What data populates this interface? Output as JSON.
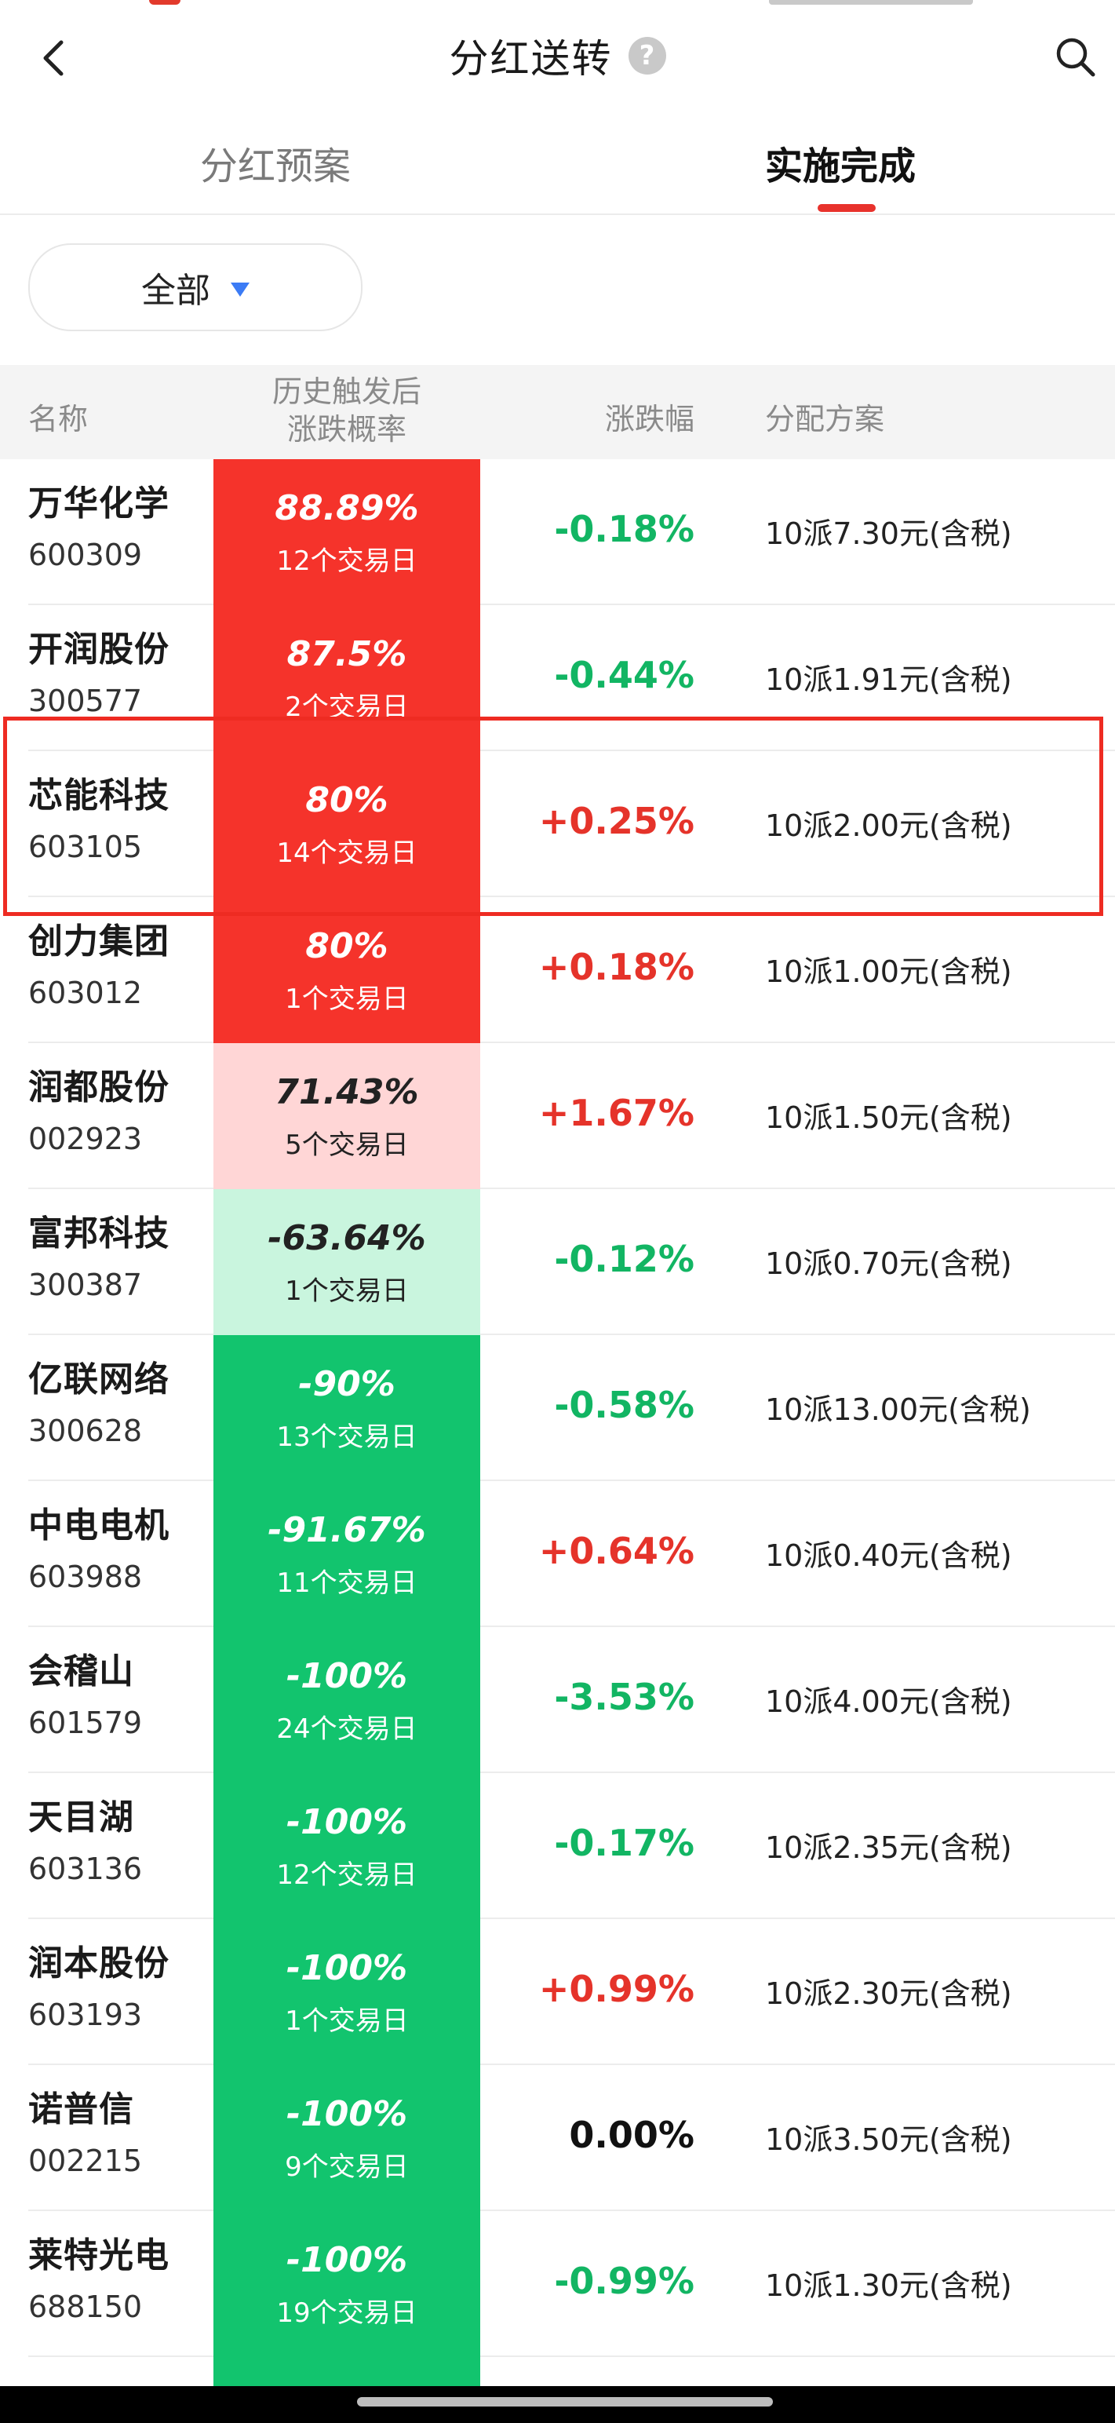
{
  "nav": {
    "title": "分红送转"
  },
  "tabs": [
    {
      "label": "分红预案",
      "active": false
    },
    {
      "label": "实施完成",
      "active": true
    }
  ],
  "filter": {
    "selected": "全部"
  },
  "table": {
    "headers": {
      "name": "名称",
      "prob_line1": "历史触发后",
      "prob_line2": "涨跌概率",
      "change": "涨跌幅",
      "plan": "分配方案"
    },
    "rows": [
      {
        "name": "万华化学",
        "code": "600309",
        "prob": "88.89%",
        "days": "12个交易日",
        "change": "-0.18%",
        "plan": "10派7.30元(含税)"
      },
      {
        "name": "开润股份",
        "code": "300577",
        "prob": "87.5%",
        "days": "2个交易日",
        "change": "-0.44%",
        "plan": "10派1.91元(含税)"
      },
      {
        "name": "芯能科技",
        "code": "603105",
        "prob": "80%",
        "days": "14个交易日",
        "change": "+0.25%",
        "plan": "10派2.00元(含税)"
      },
      {
        "name": "创力集团",
        "code": "603012",
        "prob": "80%",
        "days": "1个交易日",
        "change": "+0.18%",
        "plan": "10派1.00元(含税)"
      },
      {
        "name": "润都股份",
        "code": "002923",
        "prob": "71.43%",
        "days": "5个交易日",
        "change": "+1.67%",
        "plan": "10派1.50元(含税)"
      },
      {
        "name": "富邦科技",
        "code": "300387",
        "prob": "-63.64%",
        "days": "1个交易日",
        "change": "-0.12%",
        "plan": "10派0.70元(含税)"
      },
      {
        "name": "亿联网络",
        "code": "300628",
        "prob": "-90%",
        "days": "13个交易日",
        "change": "-0.58%",
        "plan": "10派13.00元(含税)"
      },
      {
        "name": "中电电机",
        "code": "603988",
        "prob": "-91.67%",
        "days": "11个交易日",
        "change": "+0.64%",
        "plan": "10派0.40元(含税)"
      },
      {
        "name": "会稽山",
        "code": "601579",
        "prob": "-100%",
        "days": "24个交易日",
        "change": "-3.53%",
        "plan": "10派4.00元(含税)"
      },
      {
        "name": "天目湖",
        "code": "603136",
        "prob": "-100%",
        "days": "12个交易日",
        "change": "-0.17%",
        "plan": "10派2.35元(含税)"
      },
      {
        "name": "润本股份",
        "code": "603193",
        "prob": "-100%",
        "days": "1个交易日",
        "change": "+0.99%",
        "plan": "10派2.30元(含税)"
      },
      {
        "name": "诺普信",
        "code": "002215",
        "prob": "-100%",
        "days": "9个交易日",
        "change": "0.00%",
        "plan": "10派3.50元(含税)"
      },
      {
        "name": "莱特光电",
        "code": "688150",
        "prob": "-100%",
        "days": "19个交易日",
        "change": "-0.99%",
        "plan": "10派1.30元(含税)"
      }
    ]
  },
  "colors": {
    "up_red": "#e5332a",
    "down_green": "#12b563",
    "flat": "#111111",
    "prob_strong_up": "#f5332b",
    "prob_weak_up": "#ffd6d6",
    "prob_weak_down": "#c9f5de",
    "prob_strong_down": "#12c46e",
    "tab_accent": "#e8322c",
    "highlight": "#ee2b22"
  }
}
